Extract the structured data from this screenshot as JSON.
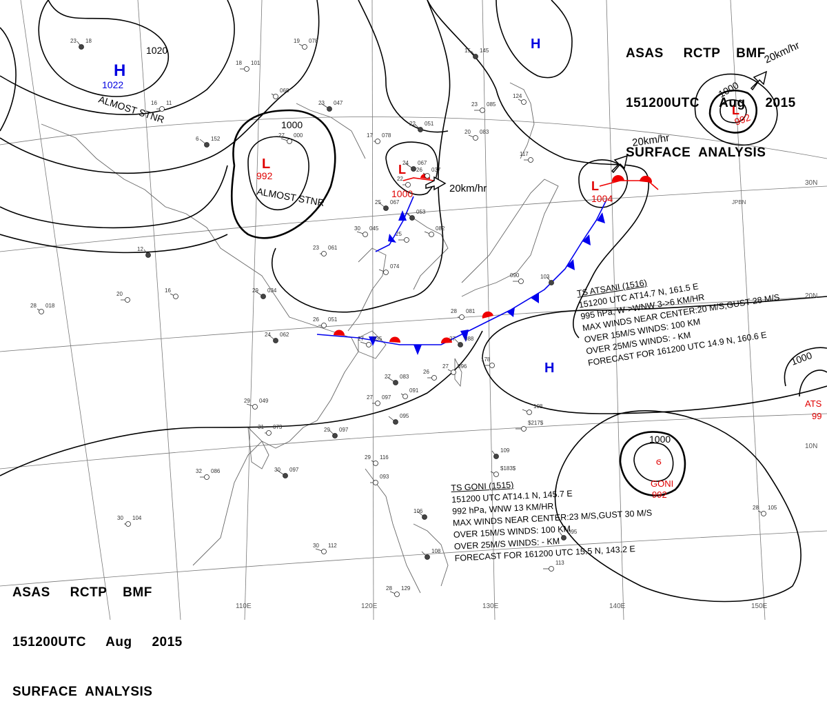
{
  "header": {
    "line1": "ASAS     RCTP    BMF",
    "line2": "151200UTC     Aug     2015",
    "line3": "SURFACE  ANALYSIS"
  },
  "longitude_labels": [
    "110E",
    "120E",
    "130E",
    "140E",
    "150E"
  ],
  "latitude_labels": [
    "30N",
    "20N",
    "10N"
  ],
  "place_labels": [
    "JPBN"
  ],
  "pressure_systems": [
    {
      "type": "H",
      "pressure": "1022",
      "note": "ALMOST STNR"
    },
    {
      "type": "L",
      "pressure": "992",
      "note": "ALMOST STNR"
    },
    {
      "type": "L",
      "pressure": "1000",
      "motion": "20km/hr"
    },
    {
      "type": "L",
      "pressure": "1004",
      "motion": "20km/hr"
    },
    {
      "type": "L",
      "pressure": "992",
      "motion": "20km/hr"
    },
    {
      "type": "H",
      "pressure": ""
    },
    {
      "type": "H",
      "pressure": ""
    },
    {
      "type": "TS",
      "pressure": "992",
      "name": "GONI"
    },
    {
      "type": "TS",
      "pressure": "99",
      "name": "ATS"
    }
  ],
  "isobar_labels": [
    "1020",
    "1000",
    "1000",
    "1000",
    "1000"
  ],
  "typhoon_atsani": {
    "line1": "TS  ATSANI  (1516)",
    "line2": "151200 UTC  AT14.7 N, 161.5 E",
    "line3": "995 hPa, W->WNW  3->6 KM/HR",
    "line4": "MAX WINDS NEAR CENTER:20 M/S,GUST 28 M/S",
    "line5": "OVER 15M/S WINDS: 100 KM",
    "line6": "OVER 25M/S WINDS: - KM",
    "line7": "FORECAST FOR 161200 UTC 14.9 N, 160.6 E"
  },
  "typhoon_goni": {
    "line1": "TS  GONI  (1515)",
    "line2": "151200 UTC  AT14.1 N, 145.7 E",
    "line3": "992 hPa, WNW  13 KM/HR",
    "line4": "MAX WINDS NEAR CENTER:23 M/S,GUST 30 M/S",
    "line5": "OVER 15M/S WINDS: 100 KM",
    "line6": "OVER 25M/S WINDS: - KM",
    "line7": "FORECAST FOR 161200 UTC 15.5 N, 143.2 E"
  },
  "stations": [
    {
      "t": "23",
      "p": "18"
    },
    {
      "t": "19",
      "p": "078"
    },
    {
      "t": "18",
      "p": "101"
    },
    {
      "t": "23",
      "p": "047"
    },
    {
      "t": "",
      "p": "068"
    },
    {
      "t": "16",
      "p": "11"
    },
    {
      "t": "6",
      "p": "152"
    },
    {
      "t": "27",
      "p": "000"
    },
    {
      "t": "17",
      "p": "078"
    },
    {
      "t": "22",
      "p": "051"
    },
    {
      "t": "20",
      "p": "083"
    },
    {
      "t": "23",
      "p": "085"
    },
    {
      "t": "15",
      "p": "145"
    },
    {
      "t": "124",
      "p": ""
    },
    {
      "t": "117",
      "p": ""
    },
    {
      "t": "24",
      "p": "067"
    },
    {
      "t": "26",
      "p": "037"
    },
    {
      "t": "22",
      "p": ""
    },
    {
      "t": "25",
      "p": "067"
    },
    {
      "t": "30",
      "p": "045"
    },
    {
      "t": "23",
      "p": "061"
    },
    {
      "t": "",
      "p": "053"
    },
    {
      "t": "",
      "p": "082"
    },
    {
      "t": "25",
      "p": ""
    },
    {
      "t": "12",
      "p": ""
    },
    {
      "t": "16",
      "p": ""
    },
    {
      "t": "20",
      "p": ""
    },
    {
      "t": "29",
      "p": "034"
    },
    {
      "t": "28",
      "p": "018"
    },
    {
      "t": "26",
      "p": "051"
    },
    {
      "t": "24",
      "p": "062"
    },
    {
      "t": "27",
      "p": "035"
    },
    {
      "t": "28",
      "p": "081"
    },
    {
      "t": "27",
      "p": "088"
    },
    {
      "t": "",
      "p": "074"
    },
    {
      "t": "090",
      "p": ""
    },
    {
      "t": "103",
      "p": ""
    },
    {
      "t": "27",
      "p": "096"
    },
    {
      "t": "26",
      "p": ""
    },
    {
      "t": "27",
      "p": "083"
    },
    {
      "t": "",
      "p": "091"
    },
    {
      "t": "27",
      "p": "097"
    },
    {
      "t": "",
      "p": "095"
    },
    {
      "t": "29",
      "p": "049"
    },
    {
      "t": "31",
      "p": "073"
    },
    {
      "t": "29",
      "p": "097"
    },
    {
      "t": "",
      "p": "108"
    },
    {
      "t": "",
      "p": "$217$"
    },
    {
      "t": "",
      "p": "109"
    },
    {
      "t": "",
      "p": "$183$"
    },
    {
      "t": "32",
      "p": "086"
    },
    {
      "t": "30",
      "p": "097"
    },
    {
      "t": "29",
      "p": "116"
    },
    {
      "t": "",
      "p": "093"
    },
    {
      "t": "106",
      "p": ""
    },
    {
      "t": "30",
      "p": "112"
    },
    {
      "t": "30",
      "p": "104"
    },
    {
      "t": "",
      "p": "108"
    },
    {
      "t": "28",
      "p": "129"
    },
    {
      "t": "",
      "p": "113"
    },
    {
      "t": "",
      "p": "095"
    },
    {
      "t": "28",
      "p": "105"
    },
    {
      "t": "178",
      "p": ""
    }
  ],
  "colors": {
    "low": "#e00000",
    "high": "#0000e0",
    "cold_front": "#0000ee",
    "warm_front": "#ee0000",
    "isobar": "#000000",
    "coast": "#666666",
    "grid": "#777777"
  }
}
